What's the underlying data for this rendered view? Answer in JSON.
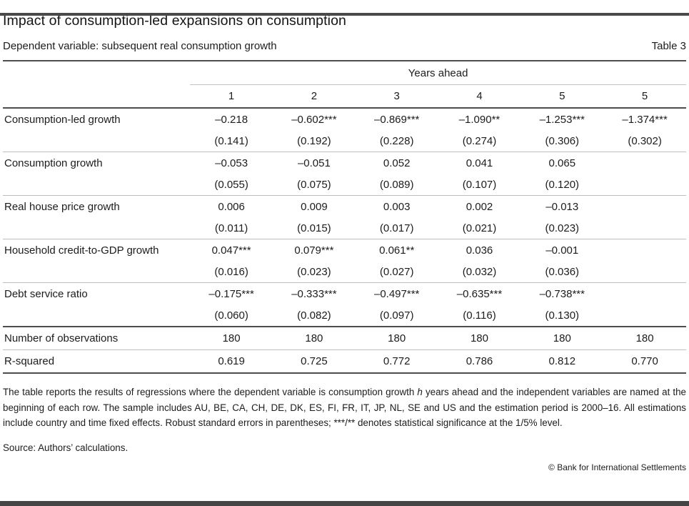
{
  "header": {
    "title": "Impact of consumption-led expansions on consumption",
    "subtitle": "Dependent variable: subsequent real consumption growth",
    "table_label": "Table 3"
  },
  "table": {
    "group_header": "Years ahead",
    "columns": [
      "1",
      "2",
      "3",
      "4",
      "5",
      "5"
    ],
    "rows": [
      {
        "label": "Consumption-led growth",
        "coefs": [
          "–0.218",
          "–0.602***",
          "–0.869***",
          "–1.090**",
          "–1.253***",
          "–1.374***"
        ],
        "ses": [
          "(0.141)",
          "(0.192)",
          "(0.228)",
          "(0.274)",
          "(0.306)",
          "(0.302)"
        ]
      },
      {
        "label": "Consumption growth",
        "coefs": [
          "–0.053",
          "–0.051",
          "0.052",
          "0.041",
          "0.065",
          ""
        ],
        "ses": [
          "(0.055)",
          "(0.075)",
          "(0.089)",
          "(0.107)",
          "(0.120)",
          ""
        ]
      },
      {
        "label": "Real house price growth",
        "coefs": [
          "0.006",
          "0.009",
          "0.003",
          "0.002",
          "–0.013",
          ""
        ],
        "ses": [
          "(0.011)",
          "(0.015)",
          "(0.017)",
          "(0.021)",
          "(0.023)",
          ""
        ]
      },
      {
        "label": "Household credit-to-GDP growth",
        "coefs": [
          "0.047***",
          "0.079***",
          "0.061**",
          "0.036",
          "–0.001",
          ""
        ],
        "ses": [
          "(0.016)",
          "(0.023)",
          "(0.027)",
          "(0.032)",
          "(0.036)",
          ""
        ]
      },
      {
        "label": "Debt service ratio",
        "coefs": [
          "–0.175***",
          "–0.333***",
          "–0.497***",
          "–0.635***",
          "–0.738***",
          ""
        ],
        "ses": [
          "(0.060)",
          "(0.082)",
          "(0.097)",
          "(0.116)",
          "(0.130)",
          ""
        ]
      }
    ],
    "summary_rows": [
      {
        "label": "Number of observations",
        "values": [
          "180",
          "180",
          "180",
          "180",
          "180",
          "180"
        ]
      },
      {
        "label": "R-squared",
        "values": [
          "0.619",
          "0.725",
          "0.772",
          "0.786",
          "0.812",
          "0.770"
        ]
      }
    ]
  },
  "footnote": {
    "text_before_h": "The table reports the results of regressions where the dependent variable is consumption growth ",
    "italic_var": "h",
    "text_after_h": " years ahead and the independent variables are named at the beginning of each row. The sample includes AU, BE, CA, CH, DE, DK, ES, FI, FR, IT, JP, NL, SE and US and the estimation period is 2000–16. All estimations include country and time fixed effects. Robust standard errors in parentheses; ***/** denotes statistical significance at the 1/5% level."
  },
  "footer": {
    "source": "Source: Authors’ calculations.",
    "copyright": "© Bank for International Settlements"
  },
  "colors": {
    "rule_dark": "#4d4d4d",
    "rule_light": "#bdbdbd",
    "bar": "#4a4a4a",
    "text": "#1c1c1c"
  }
}
